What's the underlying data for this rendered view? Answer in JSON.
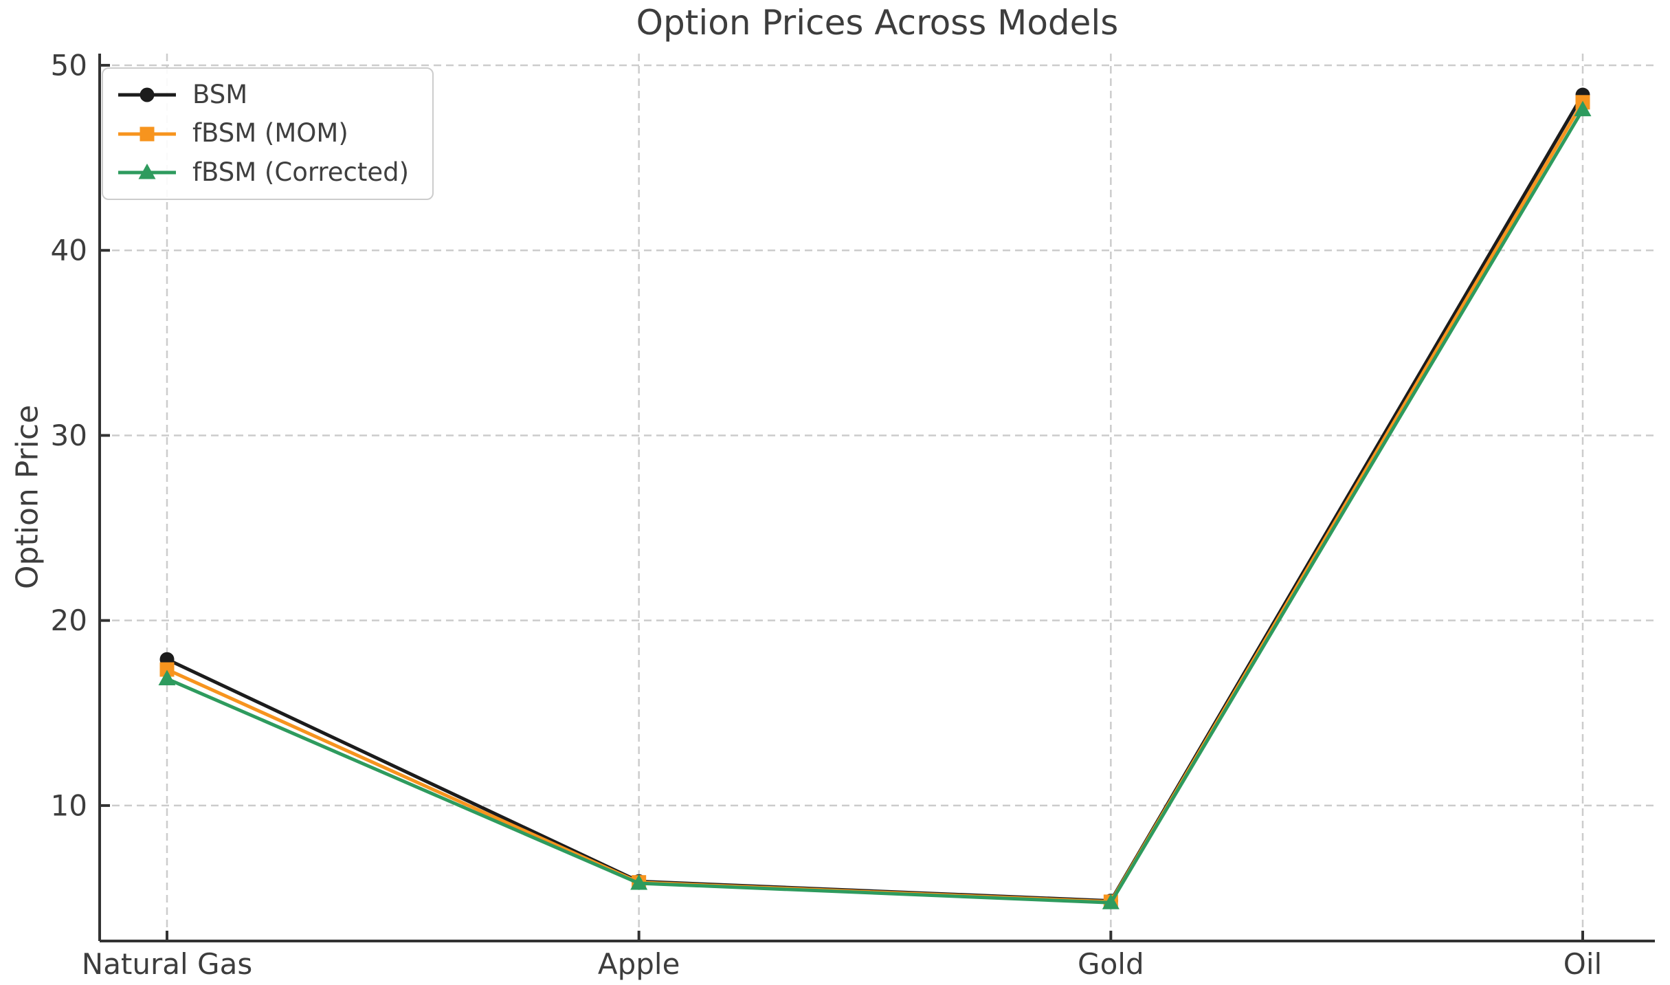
{
  "chart_data": {
    "type": "line",
    "title": "Option Prices Across Models",
    "xlabel": "",
    "ylabel": "Option Price",
    "categories": [
      "Natural Gas",
      "Apple",
      "Gold",
      "Oil"
    ],
    "series": [
      {
        "name": "BSM",
        "color": "#1c1c1c",
        "marker": "circle",
        "values": [
          17.9,
          5.9,
          4.85,
          48.4
        ]
      },
      {
        "name": "fBSM (MOM)",
        "color": "#f7941e",
        "marker": "square",
        "values": [
          17.35,
          5.85,
          4.8,
          48.0
        ]
      },
      {
        "name": "fBSM (Corrected)",
        "color": "#2e9b5e",
        "marker": "triangle",
        "values": [
          16.85,
          5.8,
          4.75,
          47.6
        ]
      }
    ],
    "yticks": [
      10,
      20,
      30,
      40,
      50
    ],
    "ylim": [
      2.68,
      50.63
    ],
    "grid": true,
    "grid_style": "dashed",
    "legend_position": "upper left",
    "colors": {
      "background": "#ffffff",
      "title": "#3d3d3d",
      "axis_text": "#3d3d3d",
      "spine": "#333333",
      "gridline": "#cccccc",
      "legend_border": "#cccccc",
      "legend_text": "#3f3f3f"
    }
  }
}
